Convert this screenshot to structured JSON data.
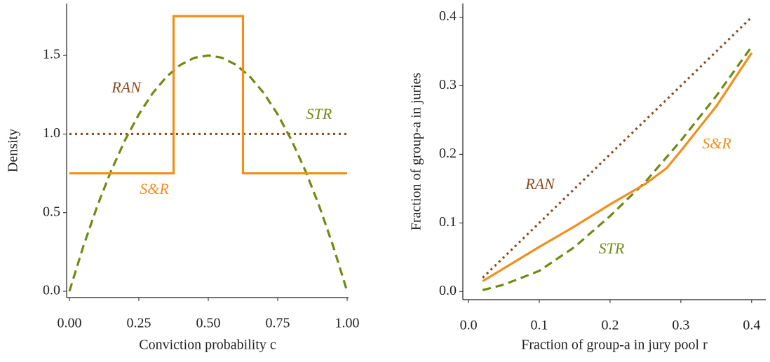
{
  "chart_data": [
    {
      "type": "line",
      "xlabel": "Conviction probability c",
      "ylabel": "Density",
      "xlim": [
        -0.01,
        1.005
      ],
      "ylim": [
        -0.04,
        1.83
      ],
      "xticks": [
        {
          "value": 0,
          "label": "0.00"
        },
        0.25,
        {
          "value": 0.5,
          "label": "0.50"
        },
        0.75,
        {
          "value": 1,
          "label": "1.00"
        }
      ],
      "yticks": [
        {
          "value": 0,
          "label": "0.0"
        },
        0.5,
        {
          "value": 1,
          "label": "1.0"
        },
        1.5
      ],
      "series": [
        {
          "name": "RAN",
          "color": "#8b4a1e",
          "linestyle": "dotted",
          "x": [
            0,
            1
          ],
          "values": [
            1,
            1
          ]
        },
        {
          "name": "STR",
          "color": "#6f8a14",
          "linestyle": "dashed",
          "x": [
            0,
            0.05,
            0.1,
            0.15,
            0.2,
            0.25,
            0.3,
            0.35,
            0.4,
            0.45,
            0.5,
            0.55,
            0.6,
            0.65,
            0.7,
            0.75,
            0.8,
            0.85,
            0.9,
            0.95,
            1
          ],
          "values": [
            0,
            0.285,
            0.54,
            0.765,
            0.96,
            1.125,
            1.26,
            1.365,
            1.44,
            1.485,
            1.5,
            1.485,
            1.44,
            1.365,
            1.26,
            1.125,
            0.96,
            0.765,
            0.54,
            0.285,
            0
          ]
        },
        {
          "name": "S&R",
          "color": "#f28e1c",
          "linestyle": "solid",
          "x": [
            0,
            0.375,
            0.375,
            0.625,
            0.625,
            1
          ],
          "values": [
            0.75,
            0.75,
            1.75,
            1.75,
            0.75,
            0.75
          ]
        }
      ]
    },
    {
      "type": "line",
      "xlabel": "Fraction of group-a in jury pool r",
      "ylabel": "Fraction of group-a in juries",
      "xlim": [
        -0.008,
        0.42
      ],
      "ylim": [
        -0.012,
        0.42
      ],
      "xticks": [
        {
          "value": 0,
          "label": "0.0"
        },
        0.1,
        0.2,
        0.3,
        0.4
      ],
      "yticks": [
        {
          "value": 0,
          "label": "0.0"
        },
        0.1,
        0.2,
        0.3,
        0.4
      ],
      "series": [
        {
          "name": "RAN",
          "color": "#8b4a1e",
          "linestyle": "dotted",
          "x": [
            0.02,
            0.4
          ],
          "values": [
            0.02,
            0.4
          ]
        },
        {
          "name": "STR",
          "color": "#6f8a14",
          "linestyle": "dashed",
          "x": [
            0.02,
            0.05,
            0.1,
            0.15,
            0.2,
            0.25,
            0.3,
            0.35,
            0.4
          ],
          "values": [
            0.002,
            0.01,
            0.03,
            0.065,
            0.11,
            0.16,
            0.22,
            0.285,
            0.357
          ]
        },
        {
          "name": "S&R",
          "color": "#f28e1c",
          "linestyle": "solid",
          "x": [
            0.02,
            0.1,
            0.15,
            0.2,
            0.25,
            0.28,
            0.3,
            0.35,
            0.4
          ],
          "values": [
            0.015,
            0.065,
            0.095,
            0.127,
            0.157,
            0.18,
            0.205,
            0.27,
            0.348
          ]
        }
      ]
    }
  ]
}
